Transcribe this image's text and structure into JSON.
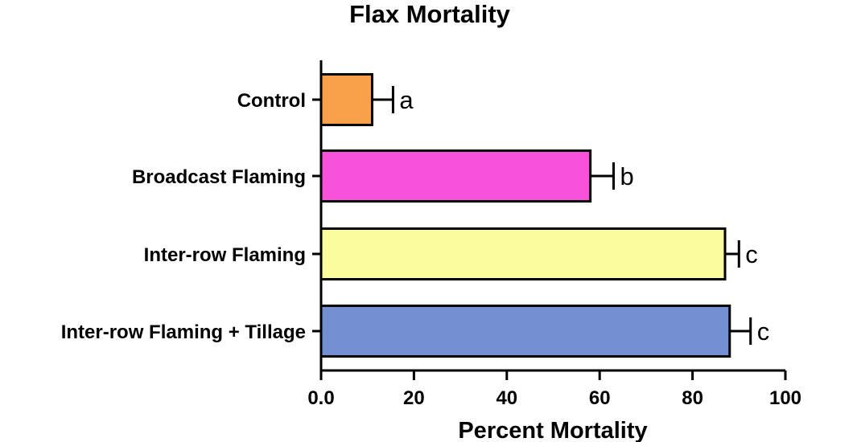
{
  "chart_data": {
    "type": "bar",
    "orientation": "horizontal",
    "title": "Flax Mortality",
    "xlabel": "Percent Mortality",
    "ylabel": "",
    "xlim": [
      0,
      100
    ],
    "x_ticks": [
      "0.0",
      "20",
      "40",
      "60",
      "80",
      "100"
    ],
    "x_tick_values": [
      0,
      20,
      40,
      60,
      80,
      100
    ],
    "categories": [
      "Control",
      "Broadcast Flaming",
      "Inter-row Flaming",
      "Inter-row Flaming + Tillage"
    ],
    "values": [
      11,
      58,
      87,
      88
    ],
    "errors": [
      4.5,
      5,
      3,
      4.5
    ],
    "annotations": [
      "a",
      "b",
      "c",
      "c"
    ],
    "colors": [
      "#F8A04A",
      "#F752D9",
      "#FAFC9E",
      "#7590D2"
    ],
    "grid": false,
    "legend": "none"
  }
}
